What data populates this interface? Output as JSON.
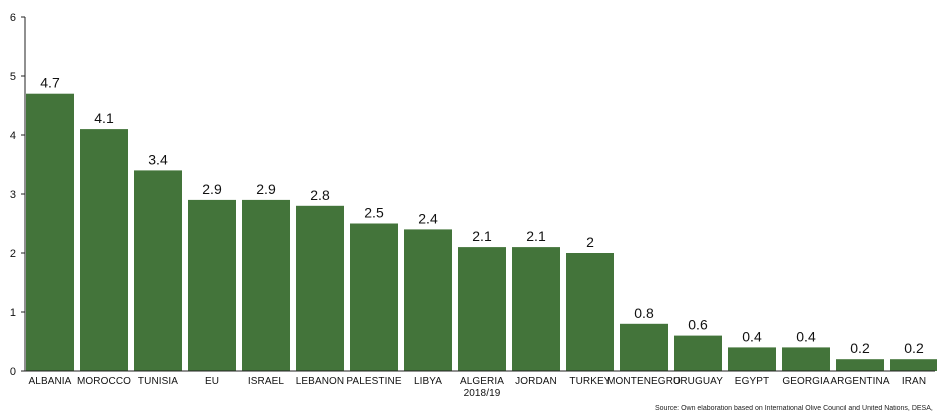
{
  "chart_data": {
    "type": "bar",
    "categories": [
      "ALBANIA",
      "MOROCCO",
      "TUNISIA",
      "EU",
      "ISRAEL",
      "LEBANON",
      "PALESTINE",
      "LIBYA",
      "ALGERIA\n2018/19",
      "JORDAN",
      "TURKEY",
      "MONTENEGRO",
      "URUGUAY",
      "EGYPT",
      "GEORGIA",
      "ARGENTINA",
      "IRAN"
    ],
    "values": [
      4.7,
      4.1,
      3.4,
      2.9,
      2.9,
      2.8,
      2.5,
      2.4,
      2.1,
      2.1,
      2,
      0.8,
      0.6,
      0.4,
      0.4,
      0.2,
      0.2
    ],
    "value_labels": [
      "4.7",
      "4.1",
      "3.4",
      "2.9",
      "2.9",
      "2.8",
      "2.5",
      "2.4",
      "2.1",
      "2.1",
      "2",
      "0.8",
      "0.6",
      "0.4",
      "0.4",
      "0.2",
      "0.2"
    ],
    "ylim": [
      0,
      6
    ],
    "yticks": [
      0,
      1,
      2,
      3,
      4,
      5,
      6
    ],
    "grid": false,
    "bar_color": "#43743A",
    "title": "",
    "xlabel": "",
    "ylabel": ""
  },
  "source": "Source: Own elaboration based on International Olive Council and United Nations, DESA, Population Divisi"
}
